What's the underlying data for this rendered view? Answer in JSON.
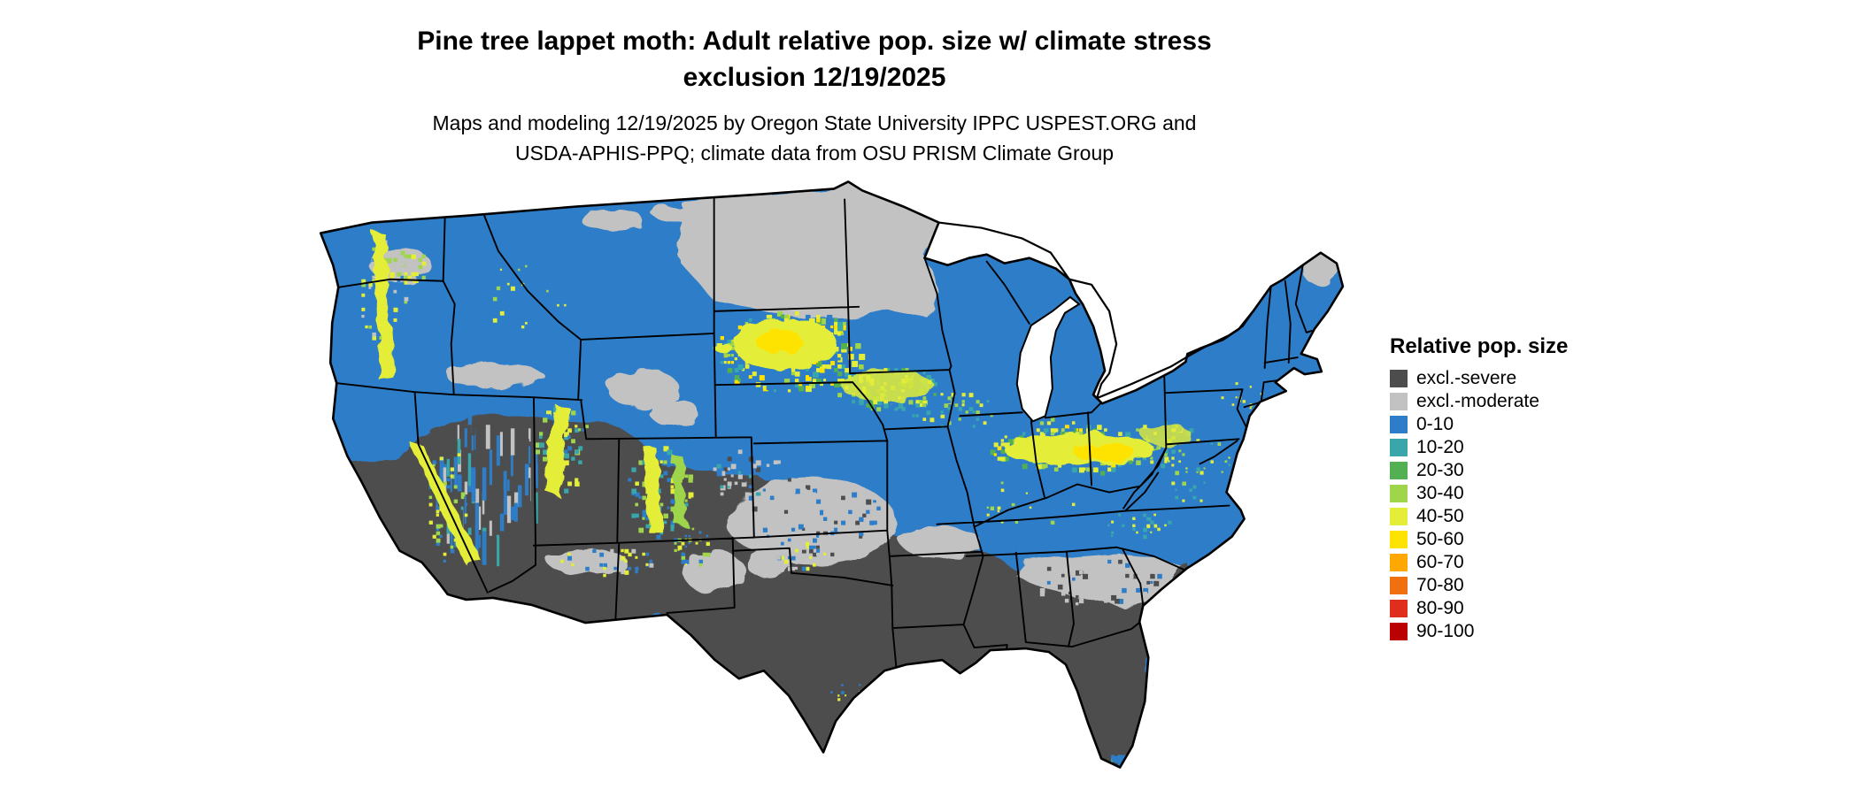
{
  "page": {
    "background_color": "#ffffff"
  },
  "title": {
    "line1": "Pine tree lappet moth: Adult relative pop. size w/ climate stress",
    "line2": "exclusion 12/19/2025"
  },
  "subtitle": {
    "line1": "Maps and modeling 12/19/2025 by Oregon State University IPPC USPEST.ORG and",
    "line2": "USDA-APHIS-PPQ; climate data from OSU PRISM Climate Group"
  },
  "map": {
    "description": "Continental United States raster map of modeled adult relative population size with climate stress exclusion",
    "outline_color": "#000000",
    "water_color": "#ffffff"
  },
  "legend": {
    "title": "Relative pop. size",
    "items": [
      {
        "label": "excl.-severe",
        "color": "#4d4d4d"
      },
      {
        "label": "excl.-moderate",
        "color": "#c2c2c2"
      },
      {
        "label": "0-10",
        "color": "#2d7dc8"
      },
      {
        "label": "10-20",
        "color": "#38a6ab"
      },
      {
        "label": "20-30",
        "color": "#52b053"
      },
      {
        "label": "30-40",
        "color": "#9ed54b"
      },
      {
        "label": "40-50",
        "color": "#e4ee38"
      },
      {
        "label": "50-60",
        "color": "#ffe300"
      },
      {
        "label": "60-70",
        "color": "#ffa801"
      },
      {
        "label": "70-80",
        "color": "#f0700f"
      },
      {
        "label": "80-90",
        "color": "#df2e1b"
      },
      {
        "label": "90-100",
        "color": "#bb0000"
      }
    ]
  }
}
